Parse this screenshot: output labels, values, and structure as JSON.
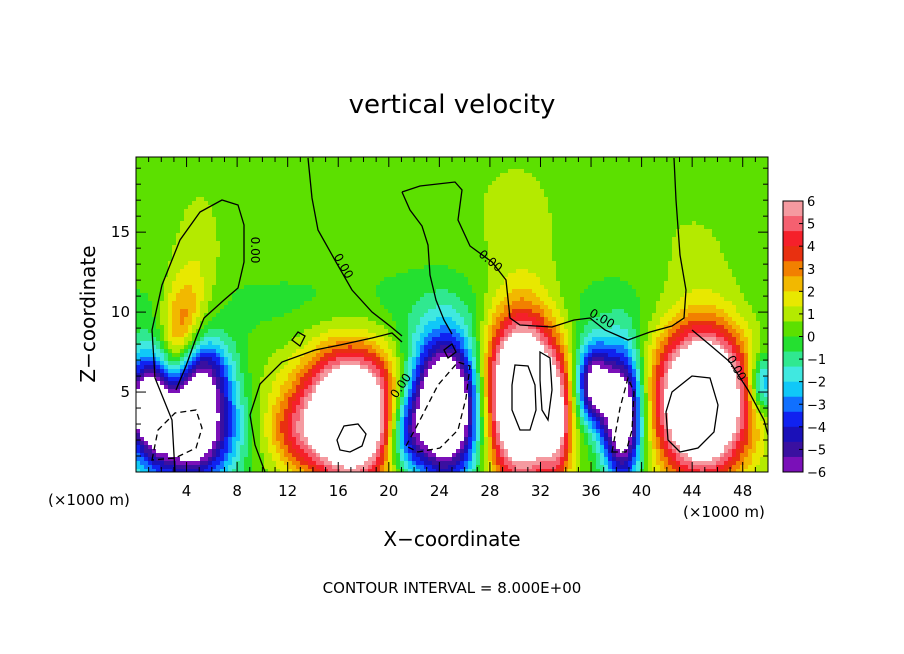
{
  "chart_data": {
    "type": "heatmap",
    "title": "vertical velocity",
    "xlabel": "X−coordinate",
    "ylabel": "Z−coordinate",
    "x_unit_left": "(×1000 m)",
    "x_unit_right": "(×1000 m)",
    "footer": "CONTOUR INTERVAL = 8.000E+00",
    "xlim": [
      0,
      50
    ],
    "ylim": [
      0,
      19.7
    ],
    "x_ticks": [
      4,
      8,
      12,
      16,
      20,
      24,
      28,
      32,
      36,
      40,
      44,
      48
    ],
    "y_ticks": [
      5,
      10,
      15
    ],
    "colorbar": {
      "range": [
        -6,
        6
      ],
      "tick_labels": [
        "6",
        "5",
        "4",
        "3",
        "2",
        "1",
        "0",
        "−1",
        "−2",
        "−3",
        "−4",
        "−5",
        "−6"
      ],
      "colors": [
        "#f59aa0",
        "#f56070",
        "#f5202a",
        "#e83010",
        "#f28000",
        "#f2b800",
        "#e8e800",
        "#b4ea00",
        "#5ce000",
        "#24e030",
        "#30e890",
        "#40e8e0",
        "#10c8f8",
        "#1070ff",
        "#1022f0",
        "#1a10b8",
        "#3a10a0",
        "#7a10b8"
      ]
    },
    "contour_labels": [
      "0.00",
      "0.00",
      "0.00",
      "0.00",
      "0.00",
      "0.00"
    ],
    "field_blobs": [
      {
        "x": 3.0,
        "z": 6.0,
        "sx": 0.9,
        "sz": 3.0,
        "w": 3.0
      },
      {
        "x": 4.0,
        "z": 9.5,
        "sx": 1.0,
        "sz": 2.0,
        "w": 2.0
      },
      {
        "x": 5.0,
        "z": 12.5,
        "sx": 1.3,
        "sz": 3.5,
        "w": 0.9
      },
      {
        "x": 4.0,
        "z": 3.0,
        "sx": 2.6,
        "sz": 2.5,
        "w": -10.0
      },
      {
        "x": 1.0,
        "z": 4.5,
        "sx": 1.5,
        "sz": 2.0,
        "w": -5.0
      },
      {
        "x": 5.5,
        "z": 6.5,
        "sx": 1.4,
        "sz": 1.6,
        "w": -3.0
      },
      {
        "x": 9.5,
        "z": 4.5,
        "sx": 2.5,
        "sz": 3.0,
        "w": 0.6
      },
      {
        "x": 12.5,
        "z": 2.5,
        "sx": 1.6,
        "sz": 1.5,
        "w": 1.8
      },
      {
        "x": 17.0,
        "z": 3.5,
        "sx": 2.7,
        "sz": 2.8,
        "w": 11.0
      },
      {
        "x": 24.5,
        "z": 4.0,
        "sx": 2.0,
        "sz": 3.0,
        "w": -11.0
      },
      {
        "x": 21.2,
        "z": 2.5,
        "sx": 1.2,
        "sz": 1.8,
        "w": -4.0
      },
      {
        "x": 30.5,
        "z": 4.8,
        "sx": 2.1,
        "sz": 3.6,
        "w": 11.5
      },
      {
        "x": 33.3,
        "z": 3.0,
        "sx": 0.8,
        "sz": 2.5,
        "w": 3.5
      },
      {
        "x": 36.2,
        "z": 5.5,
        "sx": 1.0,
        "sz": 1.8,
        "w": -7.0
      },
      {
        "x": 38.5,
        "z": 3.5,
        "sx": 1.1,
        "sz": 2.8,
        "w": -9.0
      },
      {
        "x": 44.8,
        "z": 4.5,
        "sx": 2.5,
        "sz": 3.2,
        "w": 11.5
      },
      {
        "x": 49.6,
        "z": 5.5,
        "sx": 0.8,
        "sz": 1.3,
        "w": -4.0
      },
      {
        "x": 25.0,
        "z": 10.0,
        "sx": 24.0,
        "sz": 2.0,
        "w": -0.6
      },
      {
        "x": 30.0,
        "z": 16.5,
        "sx": 3.0,
        "sz": 3.0,
        "w": 0.5
      },
      {
        "x": 44.0,
        "z": 14.0,
        "sx": 3.0,
        "sz": 3.0,
        "w": 0.4
      }
    ]
  }
}
